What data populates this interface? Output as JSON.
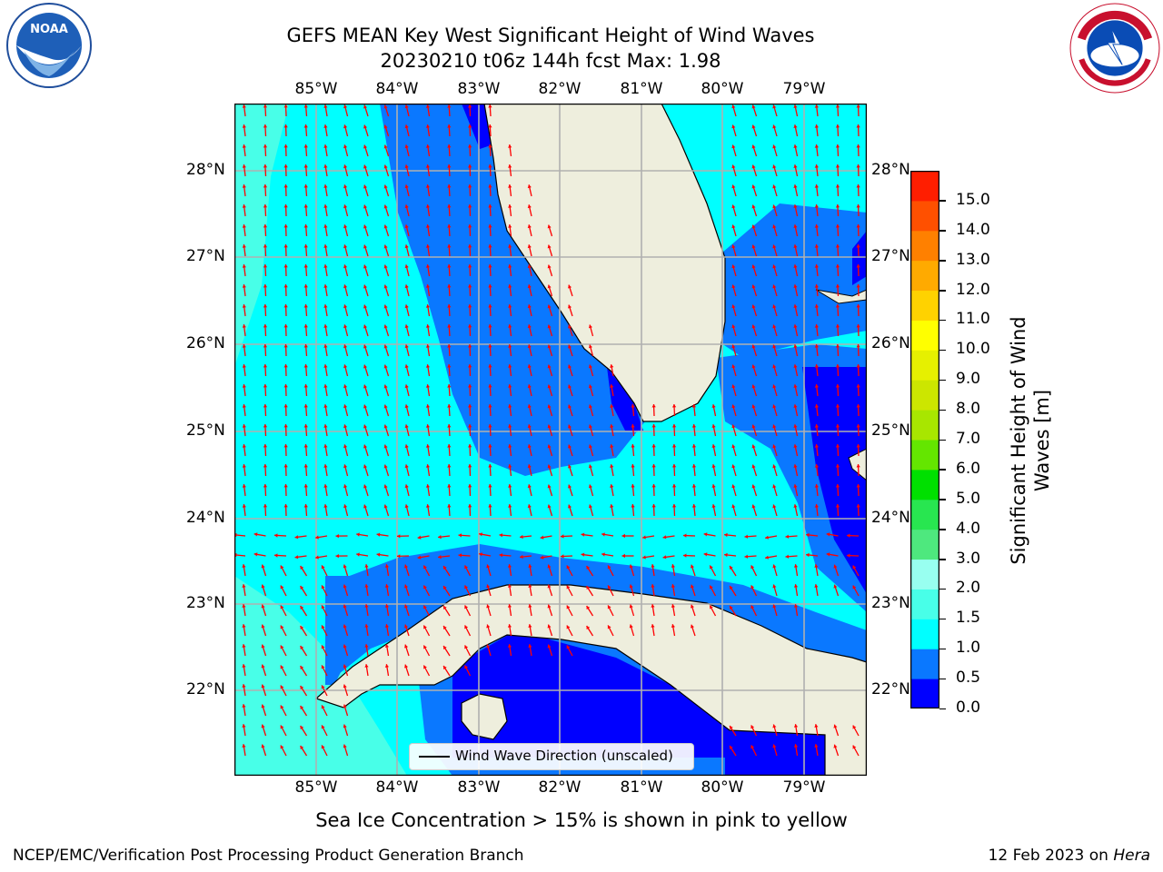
{
  "title_line1": "GEFS MEAN Key West Significant Height of Wind Waves",
  "title_line2": "20230210 t06z 144h fcst   Max: 1.98",
  "lon_labels": [
    "85°W",
    "84°W",
    "83°W",
    "82°W",
    "81°W",
    "80°W",
    "79°W"
  ],
  "lat_labels": [
    "22°N",
    "23°N",
    "24°N",
    "25°N",
    "26°N",
    "27°N",
    "28°N"
  ],
  "colorbar": {
    "label": "Significant Height of Wind Waves [m]",
    "ticks": [
      "0.0",
      "0.5",
      "1.0",
      "1.5",
      "2.0",
      "3.0",
      "4.0",
      "5.0",
      "6.0",
      "7.0",
      "8.0",
      "9.0",
      "10.0",
      "11.0",
      "12.0",
      "13.0",
      "14.0",
      "15.0"
    ],
    "colors": [
      "#0000ff",
      "#0a78ff",
      "#00ffff",
      "#48ffe8",
      "#98fff0",
      "#4ee87e",
      "#28e650",
      "#00e000",
      "#64e600",
      "#a8e600",
      "#cce600",
      "#e6f000",
      "#ffff00",
      "#ffd200",
      "#ffaa00",
      "#ff8000",
      "#ff5000",
      "#ff1e00"
    ]
  },
  "legend_label": "Wind Wave Direction (unscaled)",
  "sea_ice_note": "Sea Ice Concentration > 15% is shown in pink to yellow",
  "footer_left": "NCEP/EMC/Verification Post Processing Product Generation Branch",
  "footer_right_prefix": "12 Feb 2023 on ",
  "footer_right_host": "Hera",
  "logos": {
    "left": "noaa-logo",
    "right": "national-weather-service-logo"
  },
  "map_colors": {
    "land": "#eeeedd",
    "deep": "#0000ff",
    "mid": "#0a78ff",
    "cyan": "#00ffff",
    "light": "#48ffe8",
    "arrow": "#ff0000",
    "grid": "#b0b0b0"
  }
}
